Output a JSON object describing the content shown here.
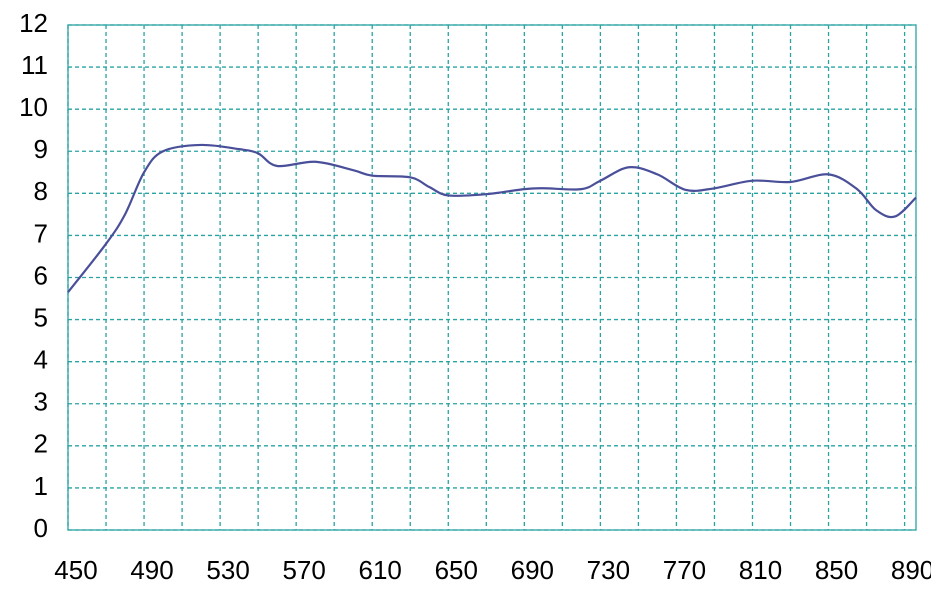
{
  "chart_data": {
    "type": "line",
    "x": [
      450,
      470,
      480,
      490,
      500,
      520,
      540,
      550,
      560,
      580,
      600,
      610,
      630,
      640,
      650,
      670,
      690,
      700,
      720,
      730,
      745,
      760,
      775,
      790,
      810,
      830,
      850,
      865,
      875,
      885,
      896
    ],
    "values": [
      5.65,
      6.8,
      7.5,
      8.5,
      9.0,
      9.15,
      9.05,
      8.95,
      8.65,
      8.75,
      8.55,
      8.42,
      8.38,
      8.15,
      7.95,
      7.98,
      8.1,
      8.12,
      8.1,
      8.3,
      8.62,
      8.45,
      8.08,
      8.12,
      8.3,
      8.27,
      8.45,
      8.1,
      7.6,
      7.45,
      7.9
    ],
    "color": "#4a4f9a",
    "xlim": [
      450,
      896
    ],
    "ylim": [
      0,
      12
    ],
    "xticks": [
      450,
      490,
      530,
      570,
      610,
      650,
      690,
      730,
      770,
      810,
      850,
      890
    ],
    "xgrid": [
      470,
      510,
      550,
      590,
      630,
      670,
      710,
      750,
      790,
      830,
      870
    ],
    "yticks": [
      0,
      1,
      2,
      3,
      4,
      5,
      6,
      7,
      8,
      9,
      10,
      11,
      12
    ],
    "grid": true,
    "grid_color": "#2aa3a3"
  }
}
